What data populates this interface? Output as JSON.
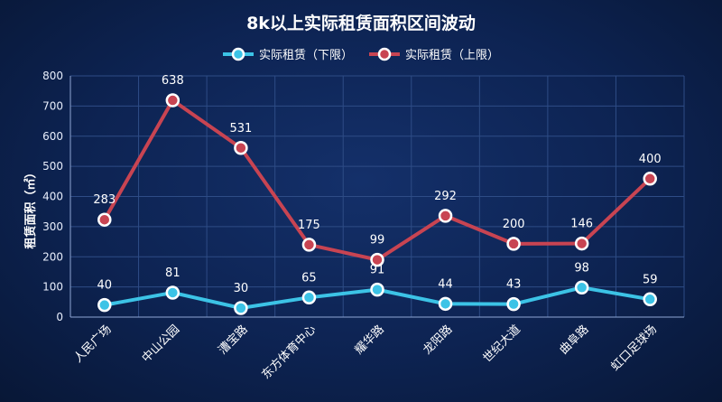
{
  "chart_data": {
    "type": "line",
    "title": "8k以上实际租赁面积区间波动",
    "ylabel": "租赁面积（㎡）",
    "xlabel": "",
    "ylim": [
      0,
      800
    ],
    "yticks": [
      0,
      100,
      200,
      300,
      400,
      500,
      600,
      700,
      800
    ],
    "grid": true,
    "legend_position": "top-center",
    "categories": [
      "人民广场",
      "中山公园",
      "漕宝路",
      "东方体育中心",
      "耀华路",
      "龙阳路",
      "世纪大道",
      "曲阜路",
      "虹口足球场"
    ],
    "series": [
      {
        "name": "实际租赁（下限）",
        "color": "#3cc3e6",
        "values": [
          40,
          81,
          30,
          65,
          91,
          44,
          43,
          98,
          59
        ],
        "labels": [
          "40",
          "81",
          "30",
          "65",
          "91",
          "44",
          "43",
          "98",
          "59"
        ]
      },
      {
        "name": "实际租赁（上限）",
        "color": "#c84452",
        "values": [
          323,
          719,
          561,
          240,
          190,
          336,
          243,
          244,
          459
        ],
        "labels": [
          "283",
          "638",
          "531",
          "175",
          "99",
          "292",
          "200",
          "146",
          "400"
        ]
      }
    ]
  }
}
